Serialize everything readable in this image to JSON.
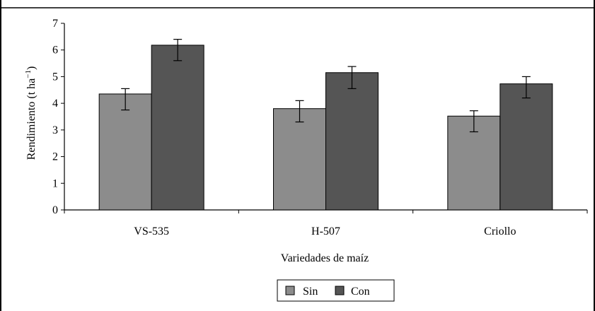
{
  "chart_data": {
    "type": "bar",
    "title": "",
    "categories": [
      "VS-535",
      "H-507",
      "Criollo"
    ],
    "series": [
      {
        "name": "Sin",
        "values": [
          4.35,
          3.8,
          3.52
        ],
        "err_low": [
          3.75,
          3.3,
          2.93
        ],
        "err_high": [
          4.55,
          4.1,
          3.72
        ],
        "color": "#8c8c8c"
      },
      {
        "name": "Con",
        "values": [
          6.18,
          5.15,
          4.73
        ],
        "err_low": [
          5.6,
          4.55,
          4.2
        ],
        "err_high": [
          6.4,
          5.38,
          5.0
        ],
        "color": "#555555"
      }
    ],
    "xlabel": "Variedades de maíz",
    "ylabel_main": "Rendimiento (t ha",
    "ylabel_sup": "−1",
    "ylabel_end": ")",
    "ylim": [
      0,
      7
    ],
    "yticks": [
      0,
      1,
      2,
      3,
      4,
      5,
      6,
      7
    ],
    "grid": false,
    "legend_position": "bottom-center"
  }
}
